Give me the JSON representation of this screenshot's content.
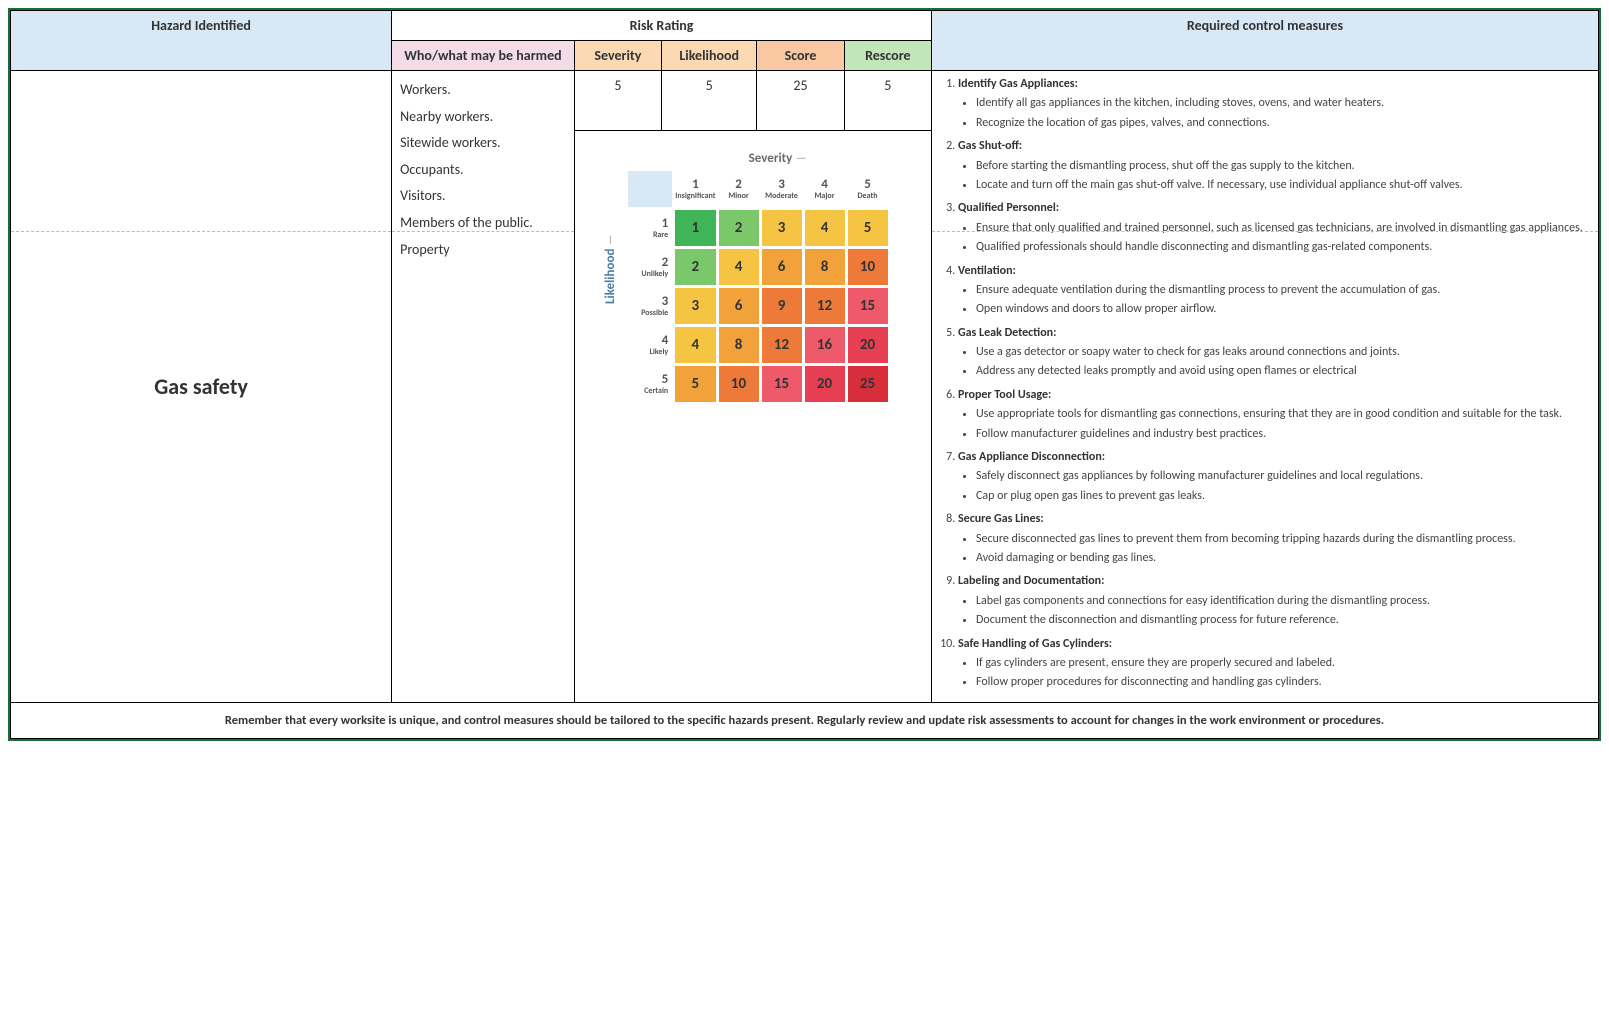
{
  "headers": {
    "hazard": "Hazard Identified",
    "risk_rating": "Risk Rating",
    "harmed": "Who/what may be harmed",
    "severity": "Severity",
    "likelihood": "Likelihood",
    "score": "Score",
    "rescore": "Rescore",
    "controls": "Required control measures"
  },
  "hazard": "Gas safety",
  "harmed": [
    "Workers.",
    "Nearby workers.",
    "Sitewide workers.",
    "Occupants.",
    "Visitors.",
    "Members of the public.",
    "Property"
  ],
  "rating": {
    "severity": "5",
    "likelihood": "5",
    "score": "25",
    "rescore": "5"
  },
  "matrix": {
    "sev_label": "Severity",
    "lik_label": "Likelihood",
    "col_headers": [
      {
        "n": "1",
        "t": "Insignificant"
      },
      {
        "n": "2",
        "t": "Minor"
      },
      {
        "n": "3",
        "t": "Moderate"
      },
      {
        "n": "4",
        "t": "Major"
      },
      {
        "n": "5",
        "t": "Death"
      }
    ],
    "row_headers": [
      {
        "n": "1",
        "t": "Rare"
      },
      {
        "n": "2",
        "t": "Unlikely"
      },
      {
        "n": "3",
        "t": "Possible"
      },
      {
        "n": "4",
        "t": "Likely"
      },
      {
        "n": "5",
        "t": "Certain"
      }
    ],
    "cells": [
      [
        {
          "v": "1",
          "c": "#3fb558"
        },
        {
          "v": "2",
          "c": "#7ac86a"
        },
        {
          "v": "3",
          "c": "#f6c443"
        },
        {
          "v": "4",
          "c": "#f6c443"
        },
        {
          "v": "5",
          "c": "#f6c443"
        }
      ],
      [
        {
          "v": "2",
          "c": "#7ac86a"
        },
        {
          "v": "4",
          "c": "#f6c443"
        },
        {
          "v": "6",
          "c": "#f2a23a"
        },
        {
          "v": "8",
          "c": "#f2a23a"
        },
        {
          "v": "10",
          "c": "#ee7a3a"
        }
      ],
      [
        {
          "v": "3",
          "c": "#f6c443"
        },
        {
          "v": "6",
          "c": "#f2a23a"
        },
        {
          "v": "9",
          "c": "#ee7a3a"
        },
        {
          "v": "12",
          "c": "#ee7a3a"
        },
        {
          "v": "15",
          "c": "#ee5a6a"
        }
      ],
      [
        {
          "v": "4",
          "c": "#f6c443"
        },
        {
          "v": "8",
          "c": "#f2a23a"
        },
        {
          "v": "12",
          "c": "#ee7a3a"
        },
        {
          "v": "16",
          "c": "#ee5a6a"
        },
        {
          "v": "20",
          "c": "#e63e52"
        }
      ],
      [
        {
          "v": "5",
          "c": "#f2a23a"
        },
        {
          "v": "10",
          "c": "#ee7a3a"
        },
        {
          "v": "15",
          "c": "#ee5a6a"
        },
        {
          "v": "20",
          "c": "#e63e52"
        },
        {
          "v": "25",
          "c": "#d62e3a"
        }
      ]
    ]
  },
  "controls": [
    {
      "title": "Identify Gas Appliances:",
      "items": [
        "Identify all gas appliances in the kitchen, including stoves, ovens, and water heaters.",
        "Recognize the location of gas pipes, valves, and connections."
      ]
    },
    {
      "title": "Gas Shut-off:",
      "items": [
        "Before starting the dismantling process, shut off the gas supply to the kitchen.",
        "Locate and turn off the main gas shut-off valve. If necessary, use individual appliance shut-off valves."
      ]
    },
    {
      "title": "Qualified Personnel:",
      "items": [
        "Ensure that only qualified and trained personnel, such as licensed gas technicians, are involved in dismantling gas appliances.",
        "Qualified professionals should handle disconnecting and dismantling gas-related components."
      ]
    },
    {
      "title": "Ventilation:",
      "items": [
        "Ensure adequate ventilation during the dismantling process to prevent the accumulation of gas.",
        "Open windows and doors to allow proper airflow."
      ]
    },
    {
      "title": "Gas Leak Detection:",
      "items": [
        "Use a gas detector or soapy water to check for gas leaks around connections and joints.",
        "Address any detected leaks promptly and avoid using open flames or electrical"
      ]
    },
    {
      "title": "Proper Tool Usage:",
      "items": [
        "Use appropriate tools for dismantling gas connections, ensuring that they are in good condition and suitable for the task.",
        "Follow manufacturer guidelines and industry best practices."
      ]
    },
    {
      "title": "Gas Appliance Disconnection:",
      "items": [
        "Safely disconnect gas appliances by following manufacturer guidelines and local regulations.",
        "Cap or plug open gas lines to prevent gas leaks."
      ]
    },
    {
      "title": "Secure Gas Lines:",
      "items": [
        "Secure disconnected gas lines to prevent them from becoming tripping hazards during the dismantling process.",
        "Avoid damaging or bending gas lines."
      ]
    },
    {
      "title": "Labeling and Documentation:",
      "items": [
        "Label gas components and connections for easy identification during the dismantling process.",
        "Document the disconnection and dismantling process for future reference."
      ]
    },
    {
      "title": "Safe Handling of Gas Cylinders:",
      "items": [
        "If gas cylinders are present, ensure they are properly secured and labeled.",
        "Follow proper procedures for disconnecting and handling gas cylinders."
      ]
    }
  ],
  "footer": "Remember that every worksite is unique, and control measures should be tailored to the specific hazards present. Regularly review and update risk assessments to account for changes in the work environment or procedures."
}
